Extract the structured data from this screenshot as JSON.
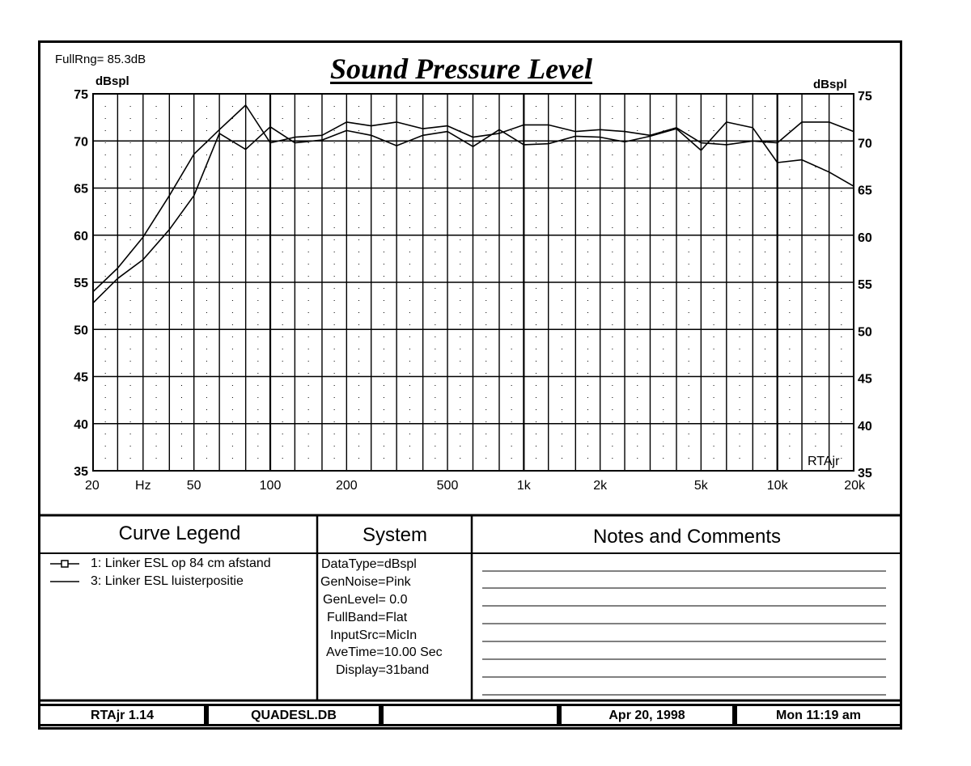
{
  "header": {
    "full_range": "FullRng=  85.3dB",
    "title": "Sound Pressure Level",
    "ylabel_left": "dBspl",
    "ylabel_right": "dBspl",
    "watermark": "RTAjr"
  },
  "chart_data": {
    "type": "line",
    "title": "Sound Pressure Level",
    "ylabel": "dBspl",
    "xlabel": "Hz",
    "xscale": "log",
    "xlim": [
      20,
      20000
    ],
    "ylim": [
      35,
      75
    ],
    "y_ticks": [
      35,
      40,
      45,
      50,
      55,
      60,
      65,
      70,
      75
    ],
    "x_tick_labels": [
      {
        "x": 20,
        "label": "20"
      },
      {
        "x": 31.5,
        "label": "Hz"
      },
      {
        "x": 50,
        "label": "50"
      },
      {
        "x": 100,
        "label": "100"
      },
      {
        "x": 200,
        "label": "200"
      },
      {
        "x": 500,
        "label": "500"
      },
      {
        "x": 1000,
        "label": "1k"
      },
      {
        "x": 2000,
        "label": "2k"
      },
      {
        "x": 5000,
        "label": "5k"
      },
      {
        "x": 10000,
        "label": "10k"
      },
      {
        "x": 20000,
        "label": "20k"
      }
    ],
    "x_bands": [
      20,
      25,
      31.5,
      40,
      50,
      63,
      80,
      100,
      125,
      160,
      200,
      250,
      315,
      400,
      500,
      630,
      800,
      1000,
      1250,
      1600,
      2000,
      2500,
      3150,
      4000,
      5000,
      6300,
      8000,
      10000,
      12500,
      16000,
      20000
    ],
    "grid": true,
    "series": [
      {
        "name": "1: Linker ESL op 84 cm afstand",
        "x": [
          20,
          25,
          31.5,
          40,
          50,
          63,
          80,
          100,
          125,
          160,
          200,
          250,
          315,
          400,
          500,
          630,
          800,
          1000,
          1250,
          1600,
          2000,
          2500,
          3150,
          4000,
          5000,
          6300,
          8000,
          10000,
          12500,
          16000,
          20000
        ],
        "values": [
          54.0,
          56.5,
          59.8,
          64.2,
          68.6,
          71.2,
          73.8,
          69.8,
          70.4,
          70.6,
          72.0,
          71.6,
          72.0,
          71.3,
          71.6,
          70.4,
          70.8,
          71.7,
          71.7,
          71.0,
          71.2,
          71.0,
          70.6,
          71.4,
          69.8,
          69.6,
          70.0,
          69.8,
          72.0,
          72.0,
          71.0
        ]
      },
      {
        "name": "3: Linker ESL luisterpositie",
        "x": [
          20,
          25,
          31.5,
          40,
          50,
          63,
          80,
          100,
          125,
          160,
          200,
          250,
          315,
          400,
          500,
          630,
          800,
          1000,
          1250,
          1600,
          2000,
          2500,
          3150,
          4000,
          5000,
          6300,
          8000,
          10000,
          12500,
          16000,
          20000
        ],
        "values": [
          52.8,
          55.4,
          57.4,
          60.6,
          64.2,
          70.8,
          69.1,
          71.5,
          69.8,
          70.1,
          71.1,
          70.6,
          69.5,
          70.6,
          71.0,
          69.4,
          71.2,
          69.6,
          69.7,
          70.5,
          70.4,
          69.9,
          70.5,
          71.3,
          69.0,
          72.0,
          71.4,
          67.7,
          68.0,
          66.7,
          65.2
        ]
      }
    ]
  },
  "legend": {
    "title": "Curve Legend",
    "items": [
      {
        "label": "1: Linker ESL op 84 cm afstand",
        "marker": "square"
      },
      {
        "label": "3: Linker ESL luisterpositie",
        "marker": "none"
      }
    ]
  },
  "system": {
    "title": "System",
    "lines": [
      "DataType=dBspl",
      "GenNoise=Pink",
      "GenLevel=  0.0",
      "FullBand=Flat",
      "InputSrc=MicIn",
      "AveTime=10.00 Sec",
      "Display=31band"
    ]
  },
  "notes": {
    "title": "Notes and Comments"
  },
  "footer": {
    "version": "RTAjr 1.14",
    "database": "QUADESL.DB",
    "empty": "",
    "date": "Apr 20, 1998",
    "time": "Mon 11:19 am"
  },
  "colors": {
    "ink": "#000000",
    "paper": "#ffffff"
  }
}
